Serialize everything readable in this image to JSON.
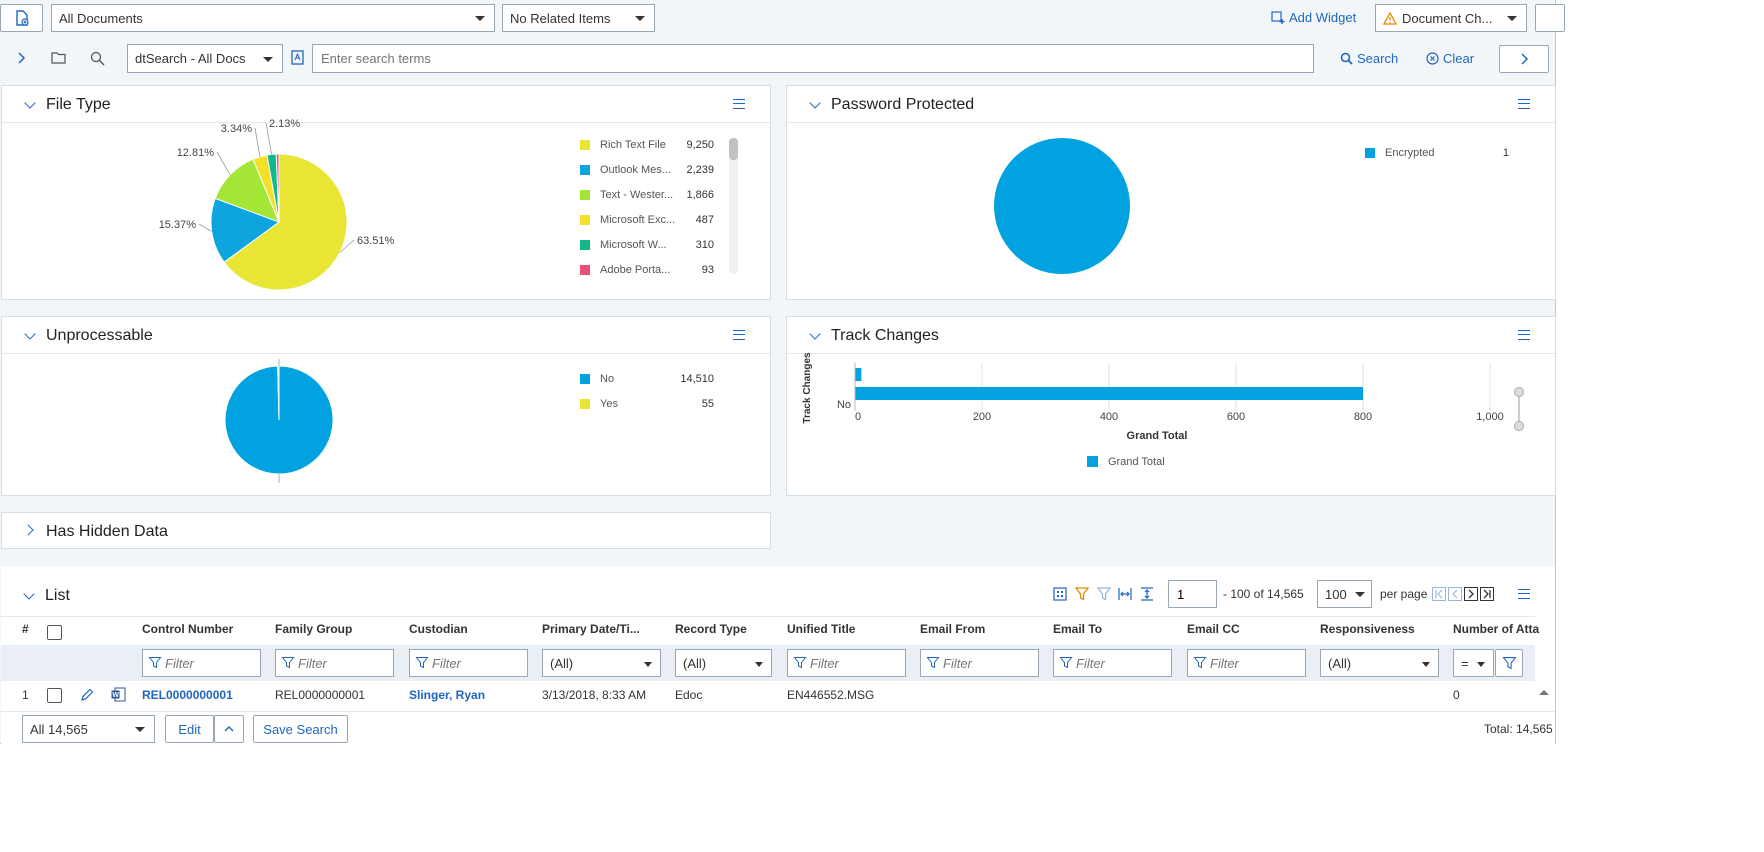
{
  "toolbar": {
    "doc_view_select": "All Documents",
    "related_select": "No Related Items",
    "add_widget": "Add Widget",
    "doc_check_select": "Document Ch..."
  },
  "search_bar": {
    "engine_select": "dtSearch - All Docs",
    "placeholder": "Enter search terms",
    "search_label": "Search",
    "clear_label": "Clear"
  },
  "file_type": {
    "title": "File Type",
    "slice_labels": [
      "63.51%",
      "15.37%",
      "12.81%",
      "3.34%",
      "2.13%"
    ],
    "legend": [
      {
        "label": "Rich Text File",
        "value": "9,250",
        "color": "#e8e534"
      },
      {
        "label": "Outlook Mes...",
        "value": "2,239",
        "color": "#0ea4e0"
      },
      {
        "label": "Text - Wester...",
        "value": "1,866",
        "color": "#a4e636"
      },
      {
        "label": "Microsoft Exc...",
        "value": "487",
        "color": "#f2e02b"
      },
      {
        "label": "Microsoft W...",
        "value": "310",
        "color": "#10b88a"
      },
      {
        "label": "Adobe Porta...",
        "value": "93",
        "color": "#e8527a"
      }
    ]
  },
  "password_protected": {
    "title": "Password Protected",
    "legend": [
      {
        "label": "Encrypted",
        "value": "1",
        "color": "#00a3e0"
      }
    ]
  },
  "unprocessable": {
    "title": "Unprocessable",
    "legend": [
      {
        "label": "No",
        "value": "14,510",
        "color": "#00a3e0"
      },
      {
        "label": "Yes",
        "value": "55",
        "color": "#e8e534"
      }
    ]
  },
  "track_changes": {
    "title": "Track Changes",
    "ylabel": "Track Changes",
    "category": "No",
    "xlabel": "Grand Total",
    "ticks": [
      "0",
      "200",
      "400",
      "600",
      "800",
      "1,000"
    ],
    "legend": "Grand Total"
  },
  "hidden_data": {
    "title": "Has Hidden Data"
  },
  "list": {
    "title": "List",
    "page_input": "1",
    "range_text": "- 100 of 14,565",
    "per_page_select": "100",
    "per_page_label": "per page",
    "columns": [
      "#",
      "Control Number",
      "Family Group",
      "Custodian",
      "Primary Date/Ti...",
      "Record Type",
      "Unified Title",
      "Email From",
      "Email To",
      "Email CC",
      "Responsiveness",
      "Number of Atta"
    ],
    "filter_placeholder": "Filter",
    "all_option": "(All)",
    "eq_option": "=",
    "row": {
      "num": "1",
      "control_number": "REL0000000001",
      "family_group": "REL0000000001",
      "custodian": "Slinger, Ryan",
      "primary_date": "3/13/2018, 8:33 AM",
      "record_type": "Edoc",
      "unified_title": "EN446552.MSG",
      "attachments": "0"
    }
  },
  "footer": {
    "scope_select": "All 14,565",
    "edit_label": "Edit",
    "save_search_label": "Save Search",
    "total": "Total: 14,565"
  },
  "chart_data": [
    {
      "type": "pie",
      "title": "File Type",
      "categories": [
        "Rich Text File",
        "Outlook Mes...",
        "Text - Wester...",
        "Microsoft Exc...",
        "Microsoft W...",
        "Adobe Porta..."
      ],
      "values": [
        9250,
        2239,
        1866,
        487,
        310,
        93
      ]
    },
    {
      "type": "pie",
      "title": "Password Protected",
      "categories": [
        "Encrypted"
      ],
      "values": [
        1
      ]
    },
    {
      "type": "pie",
      "title": "Unprocessable",
      "categories": [
        "No",
        "Yes"
      ],
      "values": [
        14510,
        55
      ]
    },
    {
      "type": "bar",
      "title": "Track Changes",
      "categories": [
        "",
        "No"
      ],
      "values": [
        10,
        800
      ],
      "xlabel": "Grand Total",
      "ylabel": "Track Changes",
      "xlim": [
        0,
        1000
      ]
    }
  ]
}
